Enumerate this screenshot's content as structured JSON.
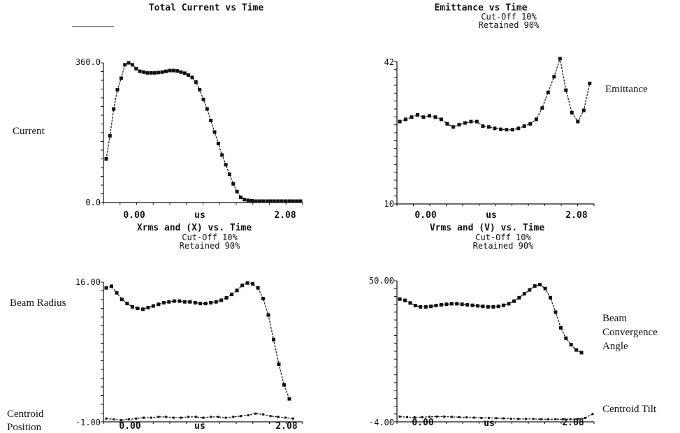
{
  "labels": {
    "current": "Current",
    "emittance": "Emittance",
    "beam_radius": "Beam Radius",
    "centroid_position_1": "Centroid",
    "centroid_position_2": "Position",
    "beam_convergence_1": "Beam",
    "beam_convergence_2": "Convergence",
    "beam_convergence_3": "Angle",
    "centroid_tilt": "Centroid Tilt"
  },
  "chart_data": [
    {
      "type": "line",
      "title": "Total Current vs Time",
      "subtitle": "",
      "xlabel": "us",
      "xtick_labels": [
        "0.00",
        "2.08"
      ],
      "ytick_labels": [
        "360.0",
        "0.0"
      ],
      "xlim": [
        -0.25,
        2.35
      ],
      "ylim": [
        0,
        360
      ],
      "series": [
        {
          "x": [
            -0.25,
            -0.2,
            -0.15,
            -0.1,
            -0.05,
            0.0,
            0.05,
            0.1,
            0.15,
            0.2,
            0.25,
            0.3,
            0.35,
            0.4,
            0.45,
            0.5,
            0.55,
            0.6,
            0.65,
            0.7,
            0.75,
            0.8,
            0.85,
            0.9,
            0.95,
            1.0,
            1.05,
            1.1,
            1.15,
            1.2,
            1.25,
            1.3,
            1.35,
            1.4,
            1.45,
            1.5,
            1.55,
            1.6,
            1.65,
            1.7,
            1.75,
            1.8,
            1.85,
            1.9,
            1.95,
            2.0,
            2.05,
            2.1,
            2.15,
            2.2,
            2.25,
            2.3,
            2.35
          ],
          "y": [
            110,
            170,
            240,
            290,
            320,
            355,
            360,
            355,
            345,
            338,
            336,
            334,
            334,
            334,
            335,
            336,
            338,
            340,
            340,
            339,
            336,
            333,
            328,
            322,
            310,
            290,
            265,
            240,
            210,
            180,
            150,
            120,
            95,
            70,
            45,
            25,
            10,
            4,
            2,
            1,
            0,
            0,
            0,
            0,
            0,
            0,
            0,
            0,
            0,
            0,
            0,
            0,
            0
          ]
        }
      ]
    },
    {
      "type": "line",
      "title": "Emittance vs Time",
      "subtitle": "Cut-Off 10%",
      "subtitle2": "Retained 90%",
      "xlabel": "us",
      "xtick_labels": [
        "0.00",
        "2.08"
      ],
      "ytick_labels": [
        "42",
        "10"
      ],
      "xlim": [
        -0.25,
        2.35
      ],
      "ylim": [
        10,
        42
      ],
      "series": [
        {
          "x": [
            -0.25,
            -0.17,
            -0.09,
            -0.01,
            0.07,
            0.15,
            0.23,
            0.31,
            0.39,
            0.47,
            0.55,
            0.63,
            0.71,
            0.79,
            0.87,
            0.95,
            1.03,
            1.11,
            1.19,
            1.27,
            1.35,
            1.43,
            1.51,
            1.59,
            1.67,
            1.75,
            1.83,
            1.91,
            1.99,
            2.07,
            2.15,
            2.23,
            2.31
          ],
          "y": [
            28.0,
            28.5,
            29.0,
            29.5,
            29.0,
            29.3,
            29.0,
            28.5,
            27.5,
            26.8,
            27.3,
            27.7,
            28.0,
            28.0,
            27.0,
            26.8,
            26.5,
            26.3,
            26.2,
            26.2,
            26.5,
            27.0,
            27.5,
            28.5,
            31.0,
            34.5,
            38.0,
            42.0,
            35.0,
            30.0,
            28.0,
            30.5,
            36.5
          ]
        }
      ]
    },
    {
      "type": "line",
      "title": "Xrms and (X) vs. Time",
      "subtitle": "Cut-Off 10%",
      "subtitle2": "Retained 90%",
      "xlabel": "us",
      "xtick_labels": [
        "0.00",
        "2.08"
      ],
      "ytick_labels": [
        "16.00",
        "-1.00"
      ],
      "xlim": [
        -0.25,
        2.35
      ],
      "ylim": [
        -1,
        16
      ],
      "series": [
        {
          "name": "Xrms",
          "x": [
            -0.25,
            -0.18,
            -0.11,
            -0.04,
            0.03,
            0.1,
            0.17,
            0.24,
            0.31,
            0.38,
            0.45,
            0.52,
            0.59,
            0.66,
            0.73,
            0.8,
            0.87,
            0.94,
            1.01,
            1.08,
            1.15,
            1.22,
            1.29,
            1.36,
            1.43,
            1.5,
            1.57,
            1.64,
            1.71,
            1.78,
            1.85,
            1.92,
            1.99,
            2.06,
            2.13,
            2.2
          ],
          "y": [
            15.3,
            15.5,
            14.7,
            13.9,
            13.4,
            13.0,
            12.8,
            12.7,
            12.9,
            13.1,
            13.3,
            13.5,
            13.6,
            13.7,
            13.7,
            13.6,
            13.6,
            13.5,
            13.4,
            13.4,
            13.5,
            13.6,
            13.8,
            14.1,
            14.5,
            15.0,
            15.6,
            15.9,
            15.8,
            15.3,
            14.0,
            12.0,
            9.0,
            6.0,
            3.5,
            1.8
          ]
        },
        {
          "name": "(X)",
          "x": [
            -0.25,
            -0.15,
            -0.05,
            0.05,
            0.15,
            0.25,
            0.35,
            0.45,
            0.55,
            0.65,
            0.75,
            0.85,
            0.95,
            1.05,
            1.15,
            1.25,
            1.35,
            1.45,
            1.55,
            1.65,
            1.75,
            1.85,
            1.95,
            2.05,
            2.15,
            2.25
          ],
          "y": [
            -0.6,
            -0.7,
            -0.8,
            -0.7,
            -0.6,
            -0.5,
            -0.5,
            -0.4,
            -0.4,
            -0.5,
            -0.5,
            -0.4,
            -0.4,
            -0.5,
            -0.4,
            -0.4,
            -0.5,
            -0.4,
            -0.3,
            -0.2,
            0.0,
            -0.1,
            -0.3,
            -0.4,
            -0.5,
            -0.6
          ]
        }
      ]
    },
    {
      "type": "line",
      "title": "Vrms and (V) vs. Time",
      "subtitle": "Cut-Off 10%",
      "subtitle2": "Retained 90%",
      "xlabel": "us",
      "xtick_labels": [
        "0.00",
        "2.08"
      ],
      "ytick_labels": [
        "50.00",
        "-4.00"
      ],
      "xlim": [
        -0.25,
        2.35
      ],
      "ylim": [
        -4,
        50
      ],
      "series": [
        {
          "name": "Vrms",
          "x": [
            -0.25,
            -0.18,
            -0.11,
            -0.04,
            0.03,
            0.1,
            0.17,
            0.24,
            0.31,
            0.38,
            0.45,
            0.52,
            0.59,
            0.66,
            0.73,
            0.8,
            0.87,
            0.94,
            1.01,
            1.08,
            1.15,
            1.22,
            1.29,
            1.36,
            1.43,
            1.5,
            1.57,
            1.64,
            1.71,
            1.78,
            1.85,
            1.92,
            1.99,
            2.06,
            2.13,
            2.2
          ],
          "y": [
            43.0,
            42.5,
            41.5,
            40.5,
            40.0,
            40.0,
            40.2,
            40.5,
            40.8,
            41.0,
            41.2,
            41.2,
            41.0,
            40.8,
            40.6,
            40.4,
            40.2,
            40.0,
            40.0,
            40.2,
            40.6,
            41.2,
            42.2,
            43.5,
            45.0,
            46.5,
            48.0,
            48.5,
            47.0,
            43.5,
            38.0,
            32.0,
            28.0,
            25.5,
            23.5,
            22.5
          ]
        },
        {
          "name": "(V)",
          "x": [
            -0.25,
            -0.15,
            -0.05,
            0.05,
            0.15,
            0.25,
            0.35,
            0.45,
            0.55,
            0.65,
            0.75,
            0.85,
            0.95,
            1.05,
            1.15,
            1.25,
            1.35,
            1.45,
            1.55,
            1.65,
            1.75,
            1.85,
            1.95,
            2.05,
            2.15,
            2.25,
            2.35
          ],
          "y": [
            -2.0,
            -2.2,
            -2.3,
            -2.2,
            -2.1,
            -2.0,
            -2.0,
            -2.1,
            -2.2,
            -2.3,
            -2.4,
            -2.5,
            -2.5,
            -2.6,
            -2.7,
            -2.8,
            -2.9,
            -2.9,
            -2.9,
            -3.0,
            -3.0,
            -3.0,
            -3.0,
            -3.0,
            -2.9,
            -2.5,
            -1.0
          ]
        }
      ]
    }
  ]
}
